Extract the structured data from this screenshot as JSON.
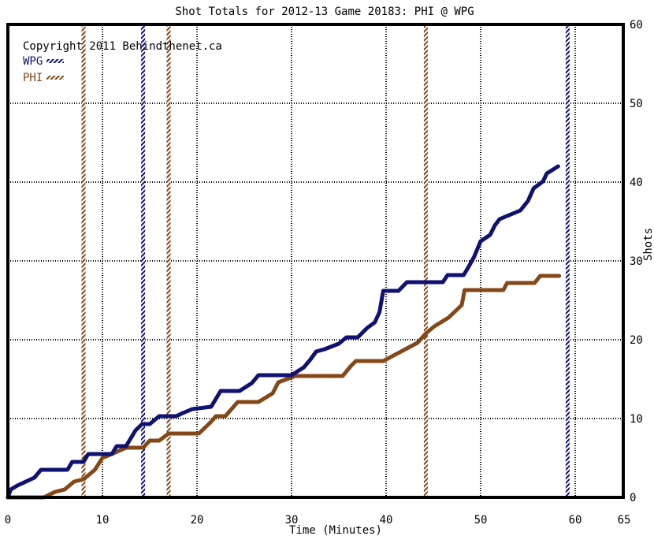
{
  "chart_data": {
    "type": "line",
    "title": "Shot Totals for 2012-13 Game 20183: PHI @ WPG",
    "copyright": "Copyright 2011 Behindthenet.ca",
    "xlabel": "Time (Minutes)",
    "ylabel": "Shots",
    "xlim": [
      0,
      60
    ],
    "ylim": [
      0,
      60
    ],
    "x_tick_labels": [
      "0",
      "10",
      "20",
      "30",
      "40",
      "50",
      "60",
      "65"
    ],
    "y_tick_labels": [
      "0",
      "10",
      "20",
      "30",
      "40",
      "50",
      "60"
    ],
    "grid": true,
    "legend_position": "top-left",
    "series": [
      {
        "name": "WPG",
        "color": "#0f1270",
        "points": [
          [
            0,
            0
          ],
          [
            0.3,
            1
          ],
          [
            1,
            1.5
          ],
          [
            2.8,
            2.5
          ],
          [
            3.5,
            3.5
          ],
          [
            6.3,
            3.5
          ],
          [
            6.8,
            4.5
          ],
          [
            8,
            4.5
          ],
          [
            8.5,
            5.5
          ],
          [
            11,
            5.5
          ],
          [
            11.5,
            6.5
          ],
          [
            12.5,
            6.5
          ],
          [
            13.5,
            8.5
          ],
          [
            14.2,
            9.3
          ],
          [
            15,
            9.3
          ],
          [
            16,
            10.3
          ],
          [
            17.8,
            10.3
          ],
          [
            18.5,
            10.7
          ],
          [
            19.5,
            11.2
          ],
          [
            21.5,
            11.5
          ],
          [
            22,
            12.5
          ],
          [
            22.5,
            13.5
          ],
          [
            24.5,
            13.5
          ],
          [
            25.8,
            14.5
          ],
          [
            26.5,
            15.5
          ],
          [
            30,
            15.5
          ],
          [
            31.3,
            16.5
          ],
          [
            32,
            17.5
          ],
          [
            32.6,
            18.5
          ],
          [
            33.5,
            18.8
          ],
          [
            35,
            19.5
          ],
          [
            35.8,
            20.3
          ],
          [
            37,
            20.3
          ],
          [
            38,
            21.5
          ],
          [
            38.8,
            22.2
          ],
          [
            39.3,
            23.5
          ],
          [
            39.7,
            26.2
          ],
          [
            41.3,
            26.2
          ],
          [
            42.2,
            27.3
          ],
          [
            46,
            27.3
          ],
          [
            46.5,
            28.2
          ],
          [
            48.2,
            28.2
          ],
          [
            48.7,
            29.2
          ],
          [
            49.3,
            30.5
          ],
          [
            50,
            32.5
          ],
          [
            51,
            33.3
          ],
          [
            51.5,
            34.5
          ],
          [
            52,
            35.3
          ],
          [
            54.2,
            36.4
          ],
          [
            55,
            37.6
          ],
          [
            55.6,
            39.2
          ],
          [
            56.6,
            40.1
          ],
          [
            57,
            41.1
          ],
          [
            58.2,
            42
          ]
        ]
      },
      {
        "name": "PHI",
        "color": "#844818",
        "points": [
          [
            0,
            0
          ],
          [
            3.8,
            0
          ],
          [
            5,
            0.7
          ],
          [
            6,
            1
          ],
          [
            7,
            2
          ],
          [
            8,
            2.3
          ],
          [
            9.2,
            3.5
          ],
          [
            10,
            5
          ],
          [
            11,
            5.5
          ],
          [
            12.5,
            6.3
          ],
          [
            14.3,
            6.3
          ],
          [
            15,
            7.2
          ],
          [
            16,
            7.2
          ],
          [
            17,
            8.1
          ],
          [
            20.2,
            8.1
          ],
          [
            21.5,
            9.6
          ],
          [
            22,
            10.3
          ],
          [
            23,
            10.3
          ],
          [
            24.3,
            12.1
          ],
          [
            26.5,
            12.1
          ],
          [
            28,
            13.2
          ],
          [
            28.6,
            14.6
          ],
          [
            30.4,
            15.4
          ],
          [
            35.4,
            15.4
          ],
          [
            36.3,
            16.7
          ],
          [
            36.8,
            17.3
          ],
          [
            39.7,
            17.3
          ],
          [
            43.3,
            19.6
          ],
          [
            44.3,
            20.9
          ],
          [
            45.1,
            21.7
          ],
          [
            46.6,
            22.8
          ],
          [
            48,
            24.4
          ],
          [
            48.3,
            26.3
          ],
          [
            52.4,
            26.3
          ],
          [
            52.8,
            27.2
          ],
          [
            55.7,
            27.2
          ],
          [
            56.3,
            28.1
          ],
          [
            58.3,
            28.1
          ]
        ]
      }
    ],
    "period_markers": {
      "WPG": [
        14.3,
        59.2
      ],
      "PHI": [
        8,
        17,
        44.2
      ]
    }
  }
}
